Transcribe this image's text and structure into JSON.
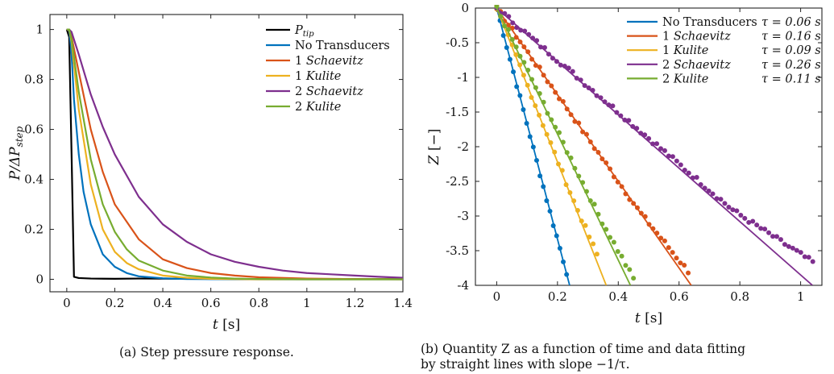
{
  "figure": {
    "captions": {
      "a": "(a) Step pressure response.",
      "b_line1": "(b) Quantity Z as a function of time and data fitting",
      "b_line2": "by straight lines with slope −1/τ."
    }
  },
  "chart_data": [
    {
      "type": "line",
      "title": "",
      "xlabel": "t [s]",
      "ylabel": "P/ΔP_step",
      "xlim": [
        -0.07,
        1.4
      ],
      "ylim": [
        -0.05,
        1.06
      ],
      "xticks": [
        "0",
        "0.2",
        "0.4",
        "0.6",
        "0.8",
        "1",
        "1.2",
        "1.4"
      ],
      "yticks": [
        "0",
        "0.2",
        "0.4",
        "0.6",
        "0.8",
        "1"
      ],
      "legend_position": "top-right",
      "series": [
        {
          "name": "P_tip",
          "color": "#000000",
          "x": [
            0,
            0.01,
            0.02,
            0.03,
            0.05,
            0.1,
            0.2,
            0.3,
            0.5,
            0.8,
            1.0,
            1.2,
            1.4
          ],
          "y": [
            1,
            0.97,
            0.5,
            0.01,
            0.005,
            0.003,
            0.002,
            0.003,
            0.002,
            0.001,
            0.001,
            0.001,
            0.001
          ]
        },
        {
          "name": "No Transducers",
          "color": "#0072BD",
          "x": [
            0,
            0.01,
            0.02,
            0.03,
            0.05,
            0.07,
            0.1,
            0.15,
            0.2,
            0.25,
            0.3,
            0.4,
            0.5,
            0.7,
            1.0,
            1.4
          ],
          "y": [
            1,
            1,
            0.9,
            0.72,
            0.5,
            0.35,
            0.22,
            0.1,
            0.05,
            0.025,
            0.012,
            0.004,
            0.001,
            0.0,
            0.0,
            0.0
          ]
        },
        {
          "name": "1 Schaevitz",
          "color": "#D95319",
          "x": [
            0,
            0.01,
            0.02,
            0.05,
            0.1,
            0.15,
            0.2,
            0.3,
            0.4,
            0.5,
            0.6,
            0.7,
            0.8,
            1.0,
            1.2,
            1.4
          ],
          "y": [
            1,
            1,
            0.97,
            0.83,
            0.6,
            0.43,
            0.3,
            0.16,
            0.08,
            0.045,
            0.025,
            0.015,
            0.008,
            0.003,
            0.001,
            0.0
          ]
        },
        {
          "name": "1 Kulite",
          "color": "#EDB120",
          "x": [
            0,
            0.01,
            0.02,
            0.05,
            0.1,
            0.15,
            0.2,
            0.25,
            0.3,
            0.4,
            0.5,
            0.6,
            0.8,
            1.0,
            1.4
          ],
          "y": [
            1,
            1,
            0.95,
            0.68,
            0.38,
            0.2,
            0.11,
            0.065,
            0.04,
            0.015,
            0.006,
            0.002,
            0.0,
            0.0,
            0.0
          ]
        },
        {
          "name": "2 Schaevitz",
          "color": "#7E2F8E",
          "x": [
            0,
            0.01,
            0.02,
            0.05,
            0.1,
            0.15,
            0.2,
            0.3,
            0.4,
            0.5,
            0.6,
            0.7,
            0.8,
            0.9,
            1.0,
            1.1,
            1.2,
            1.3,
            1.4
          ],
          "y": [
            1,
            1,
            0.99,
            0.9,
            0.74,
            0.61,
            0.5,
            0.33,
            0.22,
            0.15,
            0.1,
            0.07,
            0.05,
            0.035,
            0.025,
            0.02,
            0.015,
            0.01,
            0.006
          ]
        },
        {
          "name": "2 Kulite",
          "color": "#77AC30",
          "x": [
            0,
            0.01,
            0.02,
            0.05,
            0.1,
            0.15,
            0.2,
            0.25,
            0.3,
            0.4,
            0.5,
            0.6,
            0.7,
            0.8,
            1.0,
            1.4
          ],
          "y": [
            1,
            1,
            0.96,
            0.75,
            0.48,
            0.3,
            0.19,
            0.12,
            0.075,
            0.035,
            0.015,
            0.007,
            0.003,
            0.001,
            0.0,
            0.0
          ]
        }
      ]
    },
    {
      "type": "scatter",
      "title": "",
      "xlabel": "t [s]",
      "ylabel": "Z [−]",
      "xlim": [
        -0.07,
        1.07
      ],
      "ylim": [
        -4,
        0
      ],
      "xticks": [
        "0",
        "0.2",
        "0.4",
        "0.6",
        "0.8",
        "1"
      ],
      "yticks": [
        "0",
        "-0.5",
        "-1",
        "-1.5",
        "-2",
        "-2.5",
        "-3",
        "-3.5",
        "-4"
      ],
      "legend_position": "top-right",
      "series": [
        {
          "name": "No Transducers",
          "tau_label": "τ = 0.06 s",
          "color": "#0072BD",
          "fit_slope": -16.67,
          "fit_t0": 0.0,
          "dots_t0": 0.0,
          "dots_t1": 0.23,
          "dots_n": 22,
          "dots_k": 16.8
        },
        {
          "name": "1 Schaevitz",
          "tau_label": "τ = 0.16 s",
          "color": "#D95319",
          "fit_slope": -6.25,
          "fit_t0": 0.0,
          "dots_t0": 0.0,
          "dots_t1": 0.63,
          "dots_n": 50,
          "dots_k": 6.25
        },
        {
          "name": "1 Kulite",
          "tau_label": "τ = 0.09 s",
          "color": "#EDB120",
          "fit_slope": -11.1,
          "fit_t0": 0.0,
          "dots_t0": 0.0,
          "dots_t1": 0.33,
          "dots_n": 27,
          "dots_k": 11.0
        },
        {
          "name": "2 Schaevitz",
          "tau_label": "τ = 0.26 s",
          "color": "#7E2F8E",
          "fit_slope": -3.85,
          "fit_t0": 0.0,
          "dots_t0": 0.0,
          "dots_t1": 1.04,
          "dots_n": 80,
          "dots_k": 3.75
        },
        {
          "name": "2 Kulite",
          "tau_label": "τ = 0.11 s",
          "color": "#77AC30",
          "fit_slope": -9.09,
          "fit_t0": 0.0,
          "dots_t0": 0.0,
          "dots_t1": 0.45,
          "dots_n": 36,
          "dots_k": 8.9
        }
      ]
    }
  ]
}
